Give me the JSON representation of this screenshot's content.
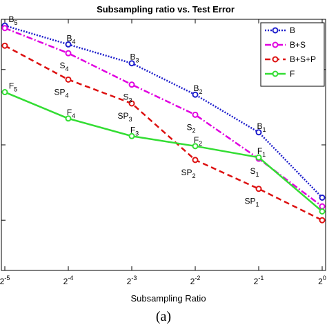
{
  "chart_data": {
    "type": "line",
    "title": "Subsampling ratio vs. Test Error",
    "xlabel": "Subsampling Ratio",
    "ylabel": "",
    "x": [
      -5,
      -4,
      -3,
      -2,
      -1,
      0
    ],
    "x_tick_labels": [
      {
        "base": "2",
        "exp": "-5"
      },
      {
        "base": "2",
        "exp": "-4"
      },
      {
        "base": "2",
        "exp": "-3"
      },
      {
        "base": "2",
        "exp": "-2"
      },
      {
        "base": "2",
        "exp": "-1"
      },
      {
        "base": "2",
        "exp": "0"
      }
    ],
    "xlim": [
      -5,
      0
    ],
    "ylim": [
      0,
      1
    ],
    "y_ticks": [
      0.2,
      0.5,
      0.8
    ],
    "grid": false,
    "legend_position": "top-right",
    "series": [
      {
        "name": "B",
        "color": "#1f1fcc",
        "line_style": "dotted",
        "values": [
          0.975,
          0.9,
          0.825,
          0.7,
          0.55,
          0.29
        ],
        "point_labels": [
          {
            "base": "B",
            "sub": "5"
          },
          {
            "base": "B",
            "sub": "4"
          },
          {
            "base": "B",
            "sub": "3"
          },
          {
            "base": "B",
            "sub": "2"
          },
          {
            "base": "B",
            "sub": "1"
          },
          {
            "base": "",
            "sub": ""
          }
        ]
      },
      {
        "name": "B+S",
        "color": "#e000e0",
        "line_style": "dashdot",
        "values": [
          0.965,
          0.865,
          0.74,
          0.62,
          0.445,
          0.255
        ],
        "point_labels": [
          {
            "base": "",
            "sub": ""
          },
          {
            "base": "S",
            "sub": "4"
          },
          {
            "base": "S",
            "sub": "3"
          },
          {
            "base": "S",
            "sub": "2"
          },
          {
            "base": "S",
            "sub": "1"
          },
          {
            "base": "",
            "sub": ""
          }
        ]
      },
      {
        "name": "B+S+P",
        "color": "#dd1111",
        "line_style": "dashed",
        "values": [
          0.895,
          0.76,
          0.665,
          0.44,
          0.325,
          0.2
        ],
        "point_labels": [
          {
            "base": "",
            "sub": ""
          },
          {
            "base": "SP",
            "sub": "4"
          },
          {
            "base": "SP",
            "sub": "3"
          },
          {
            "base": "SP",
            "sub": "2"
          },
          {
            "base": "SP",
            "sub": "1"
          },
          {
            "base": "",
            "sub": ""
          }
        ]
      },
      {
        "name": "F",
        "color": "#33dd33",
        "line_style": "solid",
        "values": [
          0.71,
          0.605,
          0.535,
          0.495,
          0.45,
          0.235
        ],
        "point_labels": [
          {
            "base": "F",
            "sub": "5"
          },
          {
            "base": "F",
            "sub": "4"
          },
          {
            "base": "F",
            "sub": "3"
          },
          {
            "base": "F",
            "sub": "2"
          },
          {
            "base": "F",
            "sub": "1"
          },
          {
            "base": "",
            "sub": ""
          }
        ]
      }
    ]
  },
  "caption": "(a)"
}
